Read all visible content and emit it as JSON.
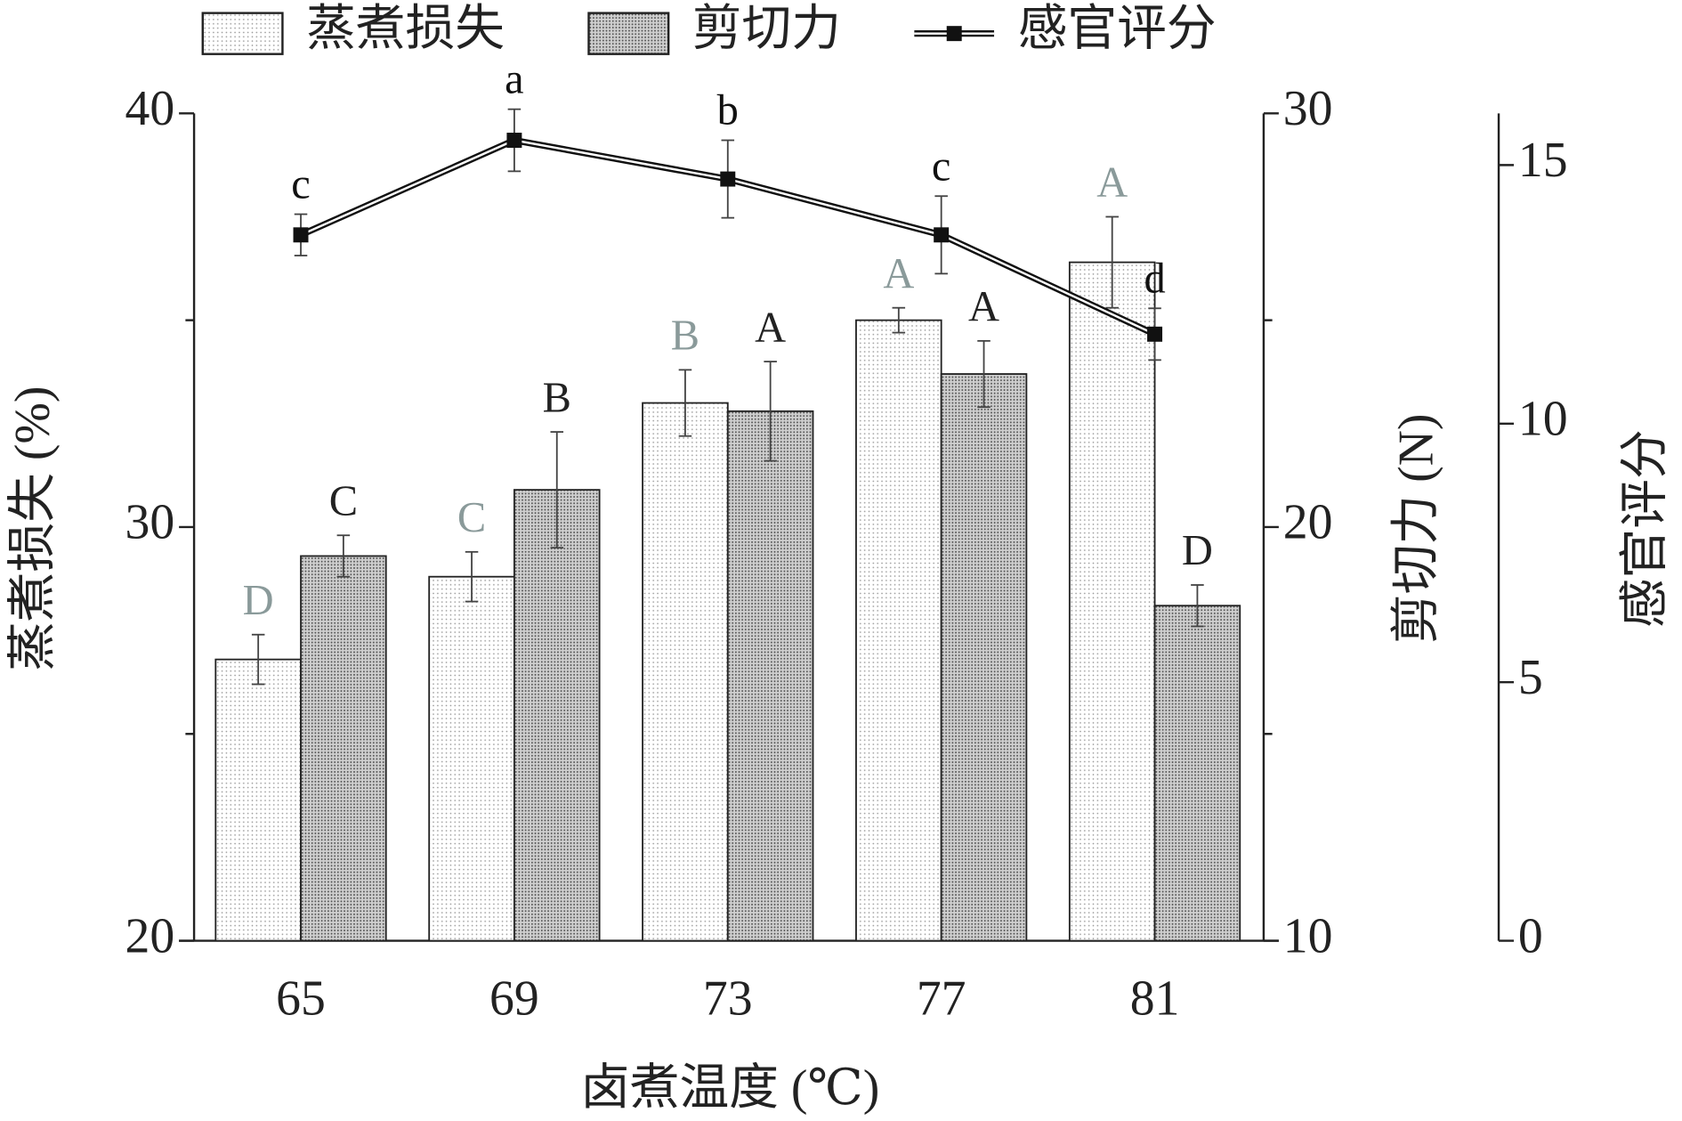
{
  "chart_data": {
    "type": "bar",
    "x_label": "卤煮温度 (℃)",
    "y_label": "蒸煮损失 (%)",
    "y2_label": "剪切力 (N)",
    "y3_label": "感官评分",
    "categories": [
      "65",
      "69",
      "73",
      "77",
      "81"
    ],
    "series": [
      {
        "name": "蒸煮损失",
        "type": "bar",
        "axis": "y",
        "color": "#9a9a9a",
        "label_color": "#8a9a9a",
        "values": [
          26.8,
          28.8,
          33.0,
          35.0,
          36.4
        ],
        "errors": [
          0.6,
          0.6,
          0.8,
          0.3,
          1.1
        ],
        "letters": [
          "D",
          "C",
          "B",
          "A",
          "A"
        ]
      },
      {
        "name": "剪切力",
        "type": "bar",
        "axis": "y2",
        "color": "#555555",
        "label_color": "#222222",
        "values": [
          19.3,
          20.9,
          22.8,
          23.7,
          18.1
        ],
        "errors": [
          0.5,
          1.4,
          1.2,
          0.8,
          0.5
        ],
        "letters": [
          "C",
          "B",
          "A",
          "A",
          "D"
        ]
      },
      {
        "name": "感官评分",
        "type": "line",
        "axis": "y3",
        "color": "#111111",
        "label_color": "#111111",
        "values": [
          13.65,
          15.48,
          14.73,
          13.65,
          11.73
        ],
        "errors": [
          0.4,
          0.6,
          0.75,
          0.75,
          0.5
        ],
        "letters": [
          "c",
          "a",
          "b",
          "c",
          "d"
        ]
      }
    ],
    "ylim": [
      20,
      40
    ],
    "yticks": [
      20,
      30,
      40
    ],
    "y_minor_ticks": [
      25,
      35
    ],
    "y2lim": [
      10,
      30
    ],
    "y2ticks": [
      10,
      20,
      30
    ],
    "y2_minor_ticks": [
      15,
      25
    ],
    "y3lim": [
      0,
      16
    ],
    "y3ticks": [
      0,
      5,
      10,
      15
    ]
  }
}
